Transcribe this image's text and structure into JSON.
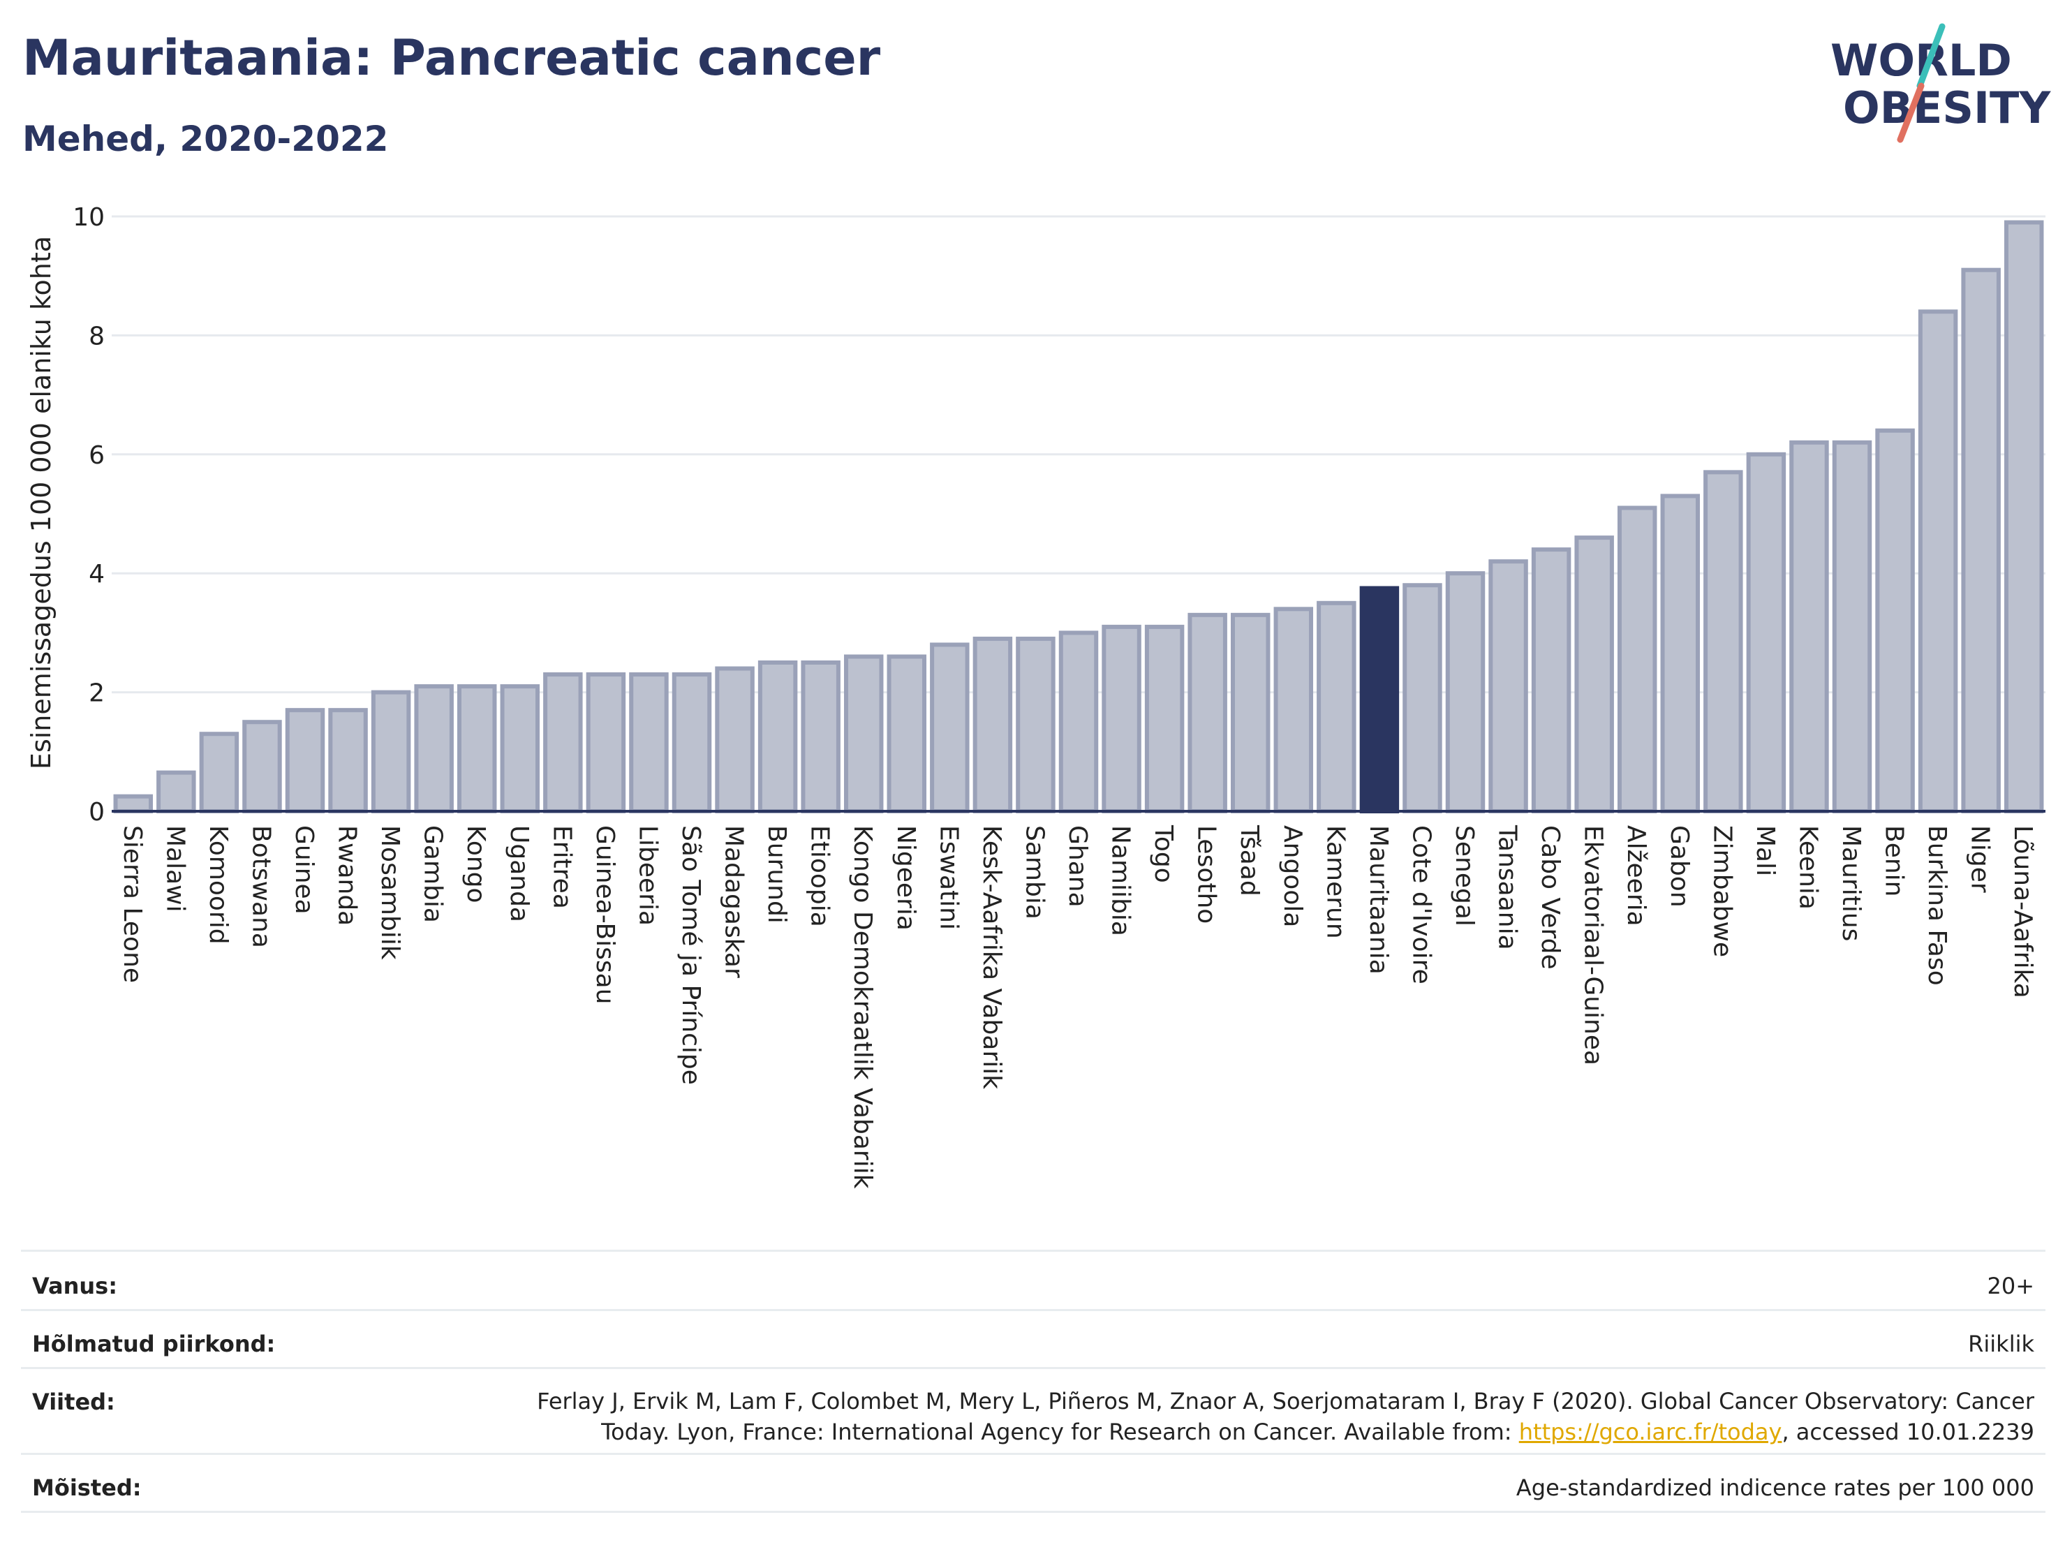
{
  "title": "Mauritaania: Pancreatic cancer",
  "subtitle": "Mehed, 2020-2022",
  "logo": {
    "line1": "WORLD",
    "line2": "OBESITY",
    "accent1": "#3bbfb9",
    "accent2": "#e07060",
    "color": "#2a3560"
  },
  "colors": {
    "bar": "#bcc1cf",
    "bar_stroke": "#9aa1b8",
    "highlight": "#2a3560",
    "grid": "#e6e9ee",
    "axis": "#2a3560"
  },
  "chart_data": {
    "type": "bar",
    "ylabel": "Esinemissagedus 100 000 elaniku kohta",
    "ylim": [
      0,
      10
    ],
    "yticks": [
      0,
      2,
      4,
      6,
      8,
      10
    ],
    "highlight": "Mauritaania",
    "categories": [
      "Sierra Leone",
      "Malawi",
      "Komoorid",
      "Botswana",
      "Guinea",
      "Rwanda",
      "Mosambiik",
      "Gambia",
      "Kongo",
      "Uganda",
      "Eritrea",
      "Guinea-Bissau",
      "Libeeria",
      "São Tomé ja Príncipe",
      "Madagaskar",
      "Burundi",
      "Etioopia",
      "Kongo Demokraatlik Vabariik",
      "Nigeeria",
      "Eswatini",
      "Kesk-Aafrika Vabariik",
      "Sambia",
      "Ghana",
      "Namiibia",
      "Togo",
      "Lesotho",
      "Tšaad",
      "Angoola",
      "Kamerun",
      "Mauritaania",
      "Cote d'Ivoire",
      "Senegal",
      "Tansaania",
      "Cabo Verde",
      "Ekvatoriaal-Guinea",
      "Alžeeria",
      "Gabon",
      "Zimbabwe",
      "Mali",
      "Keenia",
      "Mauritius",
      "Benin",
      "Burkina Faso",
      "Niger",
      "Lõuna-Aafrika"
    ],
    "values": [
      0.25,
      0.65,
      1.3,
      1.5,
      1.7,
      1.7,
      2.0,
      2.1,
      2.1,
      2.1,
      2.3,
      2.3,
      2.3,
      2.3,
      2.4,
      2.5,
      2.5,
      2.6,
      2.6,
      2.8,
      2.9,
      2.9,
      3.0,
      3.1,
      3.1,
      3.3,
      3.3,
      3.4,
      3.5,
      3.75,
      3.8,
      4.0,
      4.2,
      4.4,
      4.6,
      5.1,
      5.3,
      5.7,
      6.0,
      6.2,
      6.2,
      6.4,
      8.4,
      9.1,
      9.9
    ]
  },
  "meta": {
    "age_label": "Vanus:",
    "age_value": "20+",
    "region_label": "Hõlmatud piirkond:",
    "region_value": "Riiklik",
    "ref_label": "Viited:",
    "ref_line1": "Ferlay J, Ervik M, Lam F, Colombet M, Mery L, Piñeros M, Znaor A, Soerjomataram I, Bray F (2020). Global Cancer Observatory: Cancer",
    "ref_line2_pre": "Today. Lyon, France: International Agency for Research on Cancer. Available from: ",
    "ref_link": "https://gco.iarc.fr/today",
    "ref_line2_post": ", accessed 10.01.2239",
    "def_label": "Mõisted:",
    "def_value": "Age-standardized indicence rates per 100 000"
  }
}
